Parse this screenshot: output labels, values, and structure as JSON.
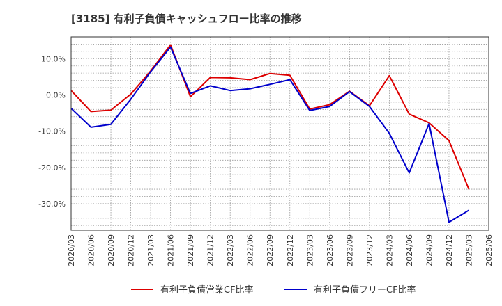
{
  "chart_data": {
    "type": "line",
    "title": "[3185]  有利子負債キャッシュフロー比率の推移",
    "x": [
      "2020/03",
      "2020/06",
      "2020/09",
      "2020/12",
      "2021/03",
      "2021/06",
      "2021/09",
      "2021/12",
      "2022/03",
      "2022/06",
      "2022/09",
      "2022/12",
      "2023/03",
      "2023/06",
      "2023/09",
      "2023/12",
      "2024/03",
      "2024/06",
      "2024/09",
      "2024/12",
      "2025/03",
      "2025/06"
    ],
    "y_ticks": [
      10,
      0,
      -10,
      -20,
      -30
    ],
    "y_tick_labels": [
      "10.0%",
      "0.0%",
      "-10.0%",
      "-20.0%",
      "-30.0%"
    ],
    "ylim": [
      -37.3,
      16.0
    ],
    "grid": true,
    "legend_position": "bottom",
    "series": [
      {
        "name": "有利子負債営業CF比率",
        "color": "#dd0000",
        "values": [
          1.2,
          -4.6,
          -4.2,
          0.2,
          6.6,
          13.8,
          -0.5,
          4.8,
          4.7,
          4.2,
          5.9,
          5.4,
          -3.9,
          -2.7,
          1.0,
          -3.0,
          5.3,
          -5.3,
          -7.7,
          -12.6,
          -26.0,
          null
        ]
      },
      {
        "name": "有利子負債フリーCF比率",
        "color": "#0000cc",
        "values": [
          -3.7,
          -8.9,
          -8.1,
          -1.2,
          6.4,
          13.2,
          0.4,
          2.5,
          1.2,
          1.7,
          2.9,
          4.2,
          -4.3,
          -3.2,
          0.9,
          -3.2,
          -10.6,
          -21.5,
          -7.9,
          -35.1,
          -31.8,
          null
        ]
      }
    ]
  }
}
